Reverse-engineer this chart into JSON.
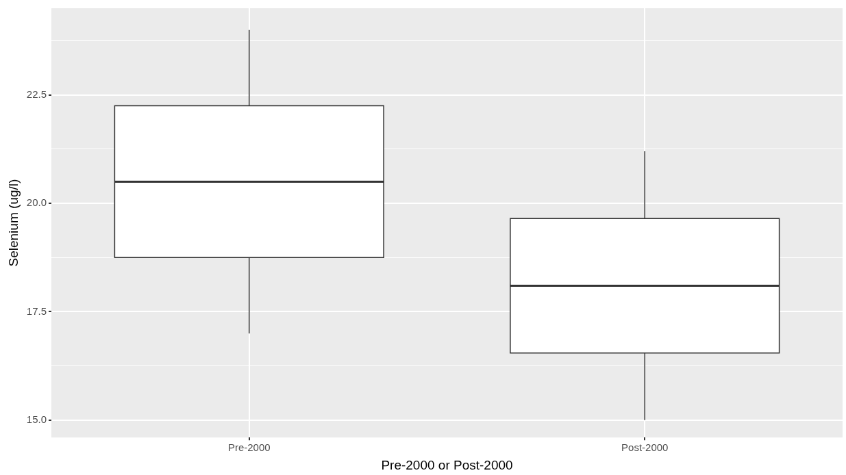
{
  "chart_data": {
    "type": "box",
    "xlabel": "Pre-2000 or Post-2000",
    "ylabel": "Selenium (ug/l)",
    "categories": [
      "Pre-2000",
      "Post-2000"
    ],
    "boxes": [
      {
        "low": 17.0,
        "q1": 18.75,
        "median": 20.5,
        "q3": 22.25,
        "high": 24.0
      },
      {
        "low": 15.0,
        "q1": 16.55,
        "median": 18.1,
        "q3": 19.65,
        "high": 21.2
      }
    ],
    "ylim": [
      14.6,
      24.5
    ],
    "yticks": [
      {
        "value": 15,
        "label": "15.0"
      },
      {
        "value": 16.25,
        "label": null
      },
      {
        "value": 17.5,
        "label": "17.5"
      },
      {
        "value": 18.75,
        "label": null
      },
      {
        "value": 20,
        "label": "20.0"
      },
      {
        "value": 21.25,
        "label": null
      },
      {
        "value": 22.5,
        "label": "22.5"
      },
      {
        "value": 23.75,
        "label": null
      }
    ],
    "grid": true
  }
}
